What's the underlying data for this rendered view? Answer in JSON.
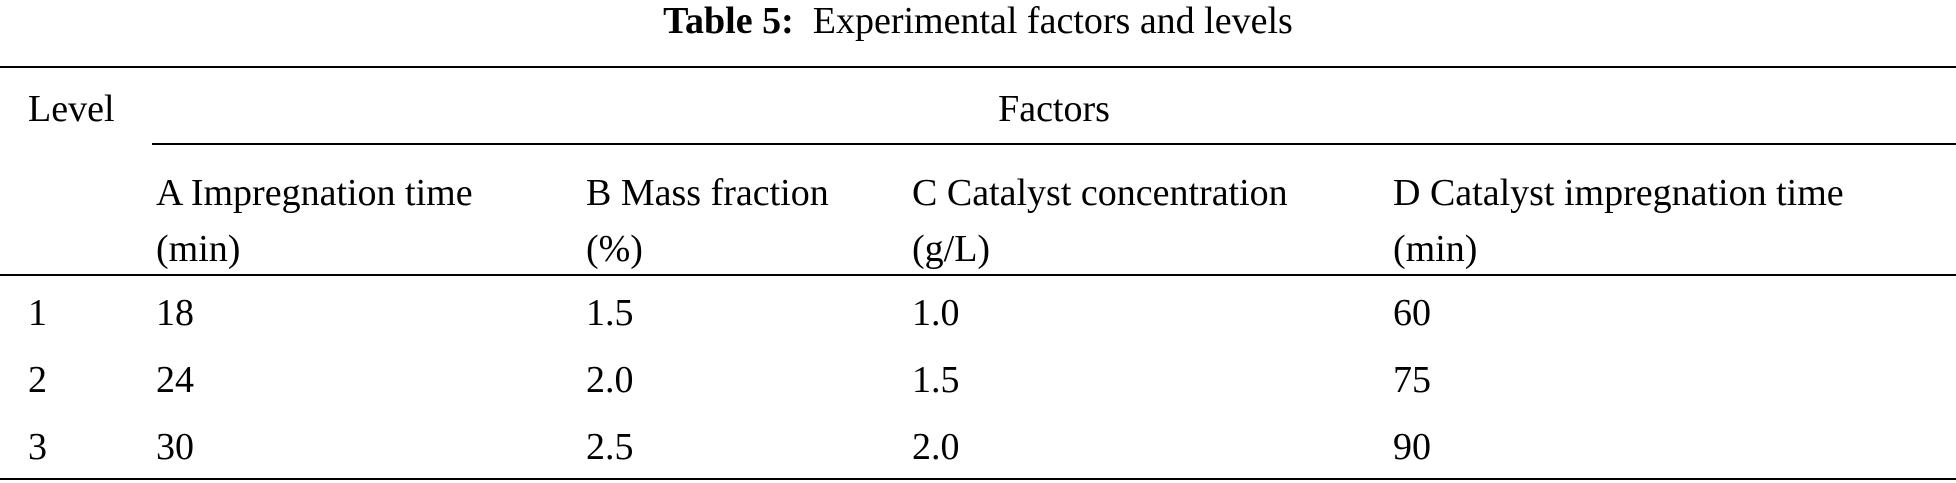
{
  "caption": {
    "label": "Table 5:",
    "text": "Experimental factors and levels"
  },
  "table": {
    "level_header": "Level",
    "factors_header": "Factors",
    "factor_columns": [
      {
        "name": "A Impregnation time",
        "unit": "(min)"
      },
      {
        "name": "B Mass fraction",
        "unit": "(%)"
      },
      {
        "name": "C Catalyst concentration",
        "unit": "(g/L)"
      },
      {
        "name": "D Catalyst impregnation time",
        "unit": "(min)"
      }
    ],
    "rows": [
      {
        "level": "1",
        "values": [
          "18",
          "1.5",
          "1.0",
          "60"
        ]
      },
      {
        "level": "2",
        "values": [
          "24",
          "2.0",
          "1.5",
          "75"
        ]
      },
      {
        "level": "3",
        "values": [
          "30",
          "2.5",
          "2.0",
          "90"
        ]
      }
    ]
  }
}
